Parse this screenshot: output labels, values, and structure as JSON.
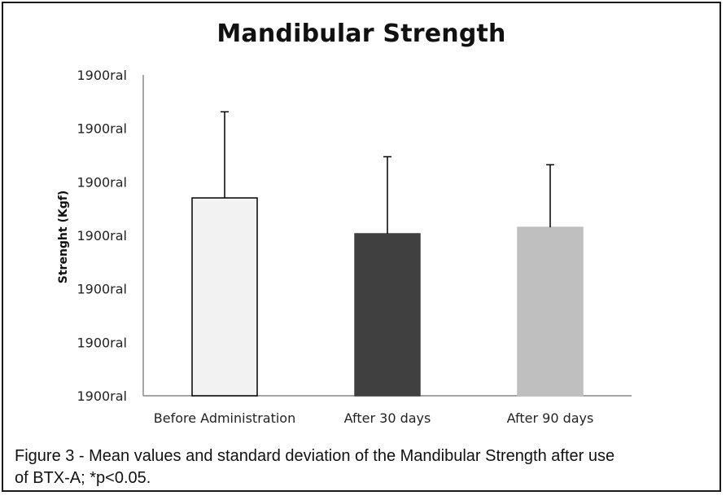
{
  "chart_data": {
    "type": "bar",
    "title": "Mandibular Strength",
    "xlabel": "",
    "ylabel": "Strenght (Kgf)",
    "categories": [
      "Before Administration",
      "After 30 days",
      "After 90 days"
    ],
    "values": [
      3.7,
      3.03,
      3.15
    ],
    "errors": [
      1.61,
      1.44,
      1.17
    ],
    "ylim": [
      0,
      6
    ],
    "y_ticks": [
      0,
      1,
      2,
      3,
      4,
      5,
      6
    ],
    "y_tick_labels": [
      "1900ral",
      "1900ral",
      "1900ral",
      "1900ral",
      "1900ral",
      "1900ral",
      "1900ral"
    ],
    "bar_colors": [
      "#f2f2f2",
      "#404040",
      "#bfbfbf"
    ],
    "bar_edge_colors": [
      "#000000",
      "#404040",
      "#bfbfbf"
    ],
    "grid": false,
    "legend": "none"
  },
  "caption": {
    "line1": "Figure 3 - Mean values and standard deviation of the Mandibular Strength after use",
    "line2": "of  BTX-A; *p<0.05."
  }
}
